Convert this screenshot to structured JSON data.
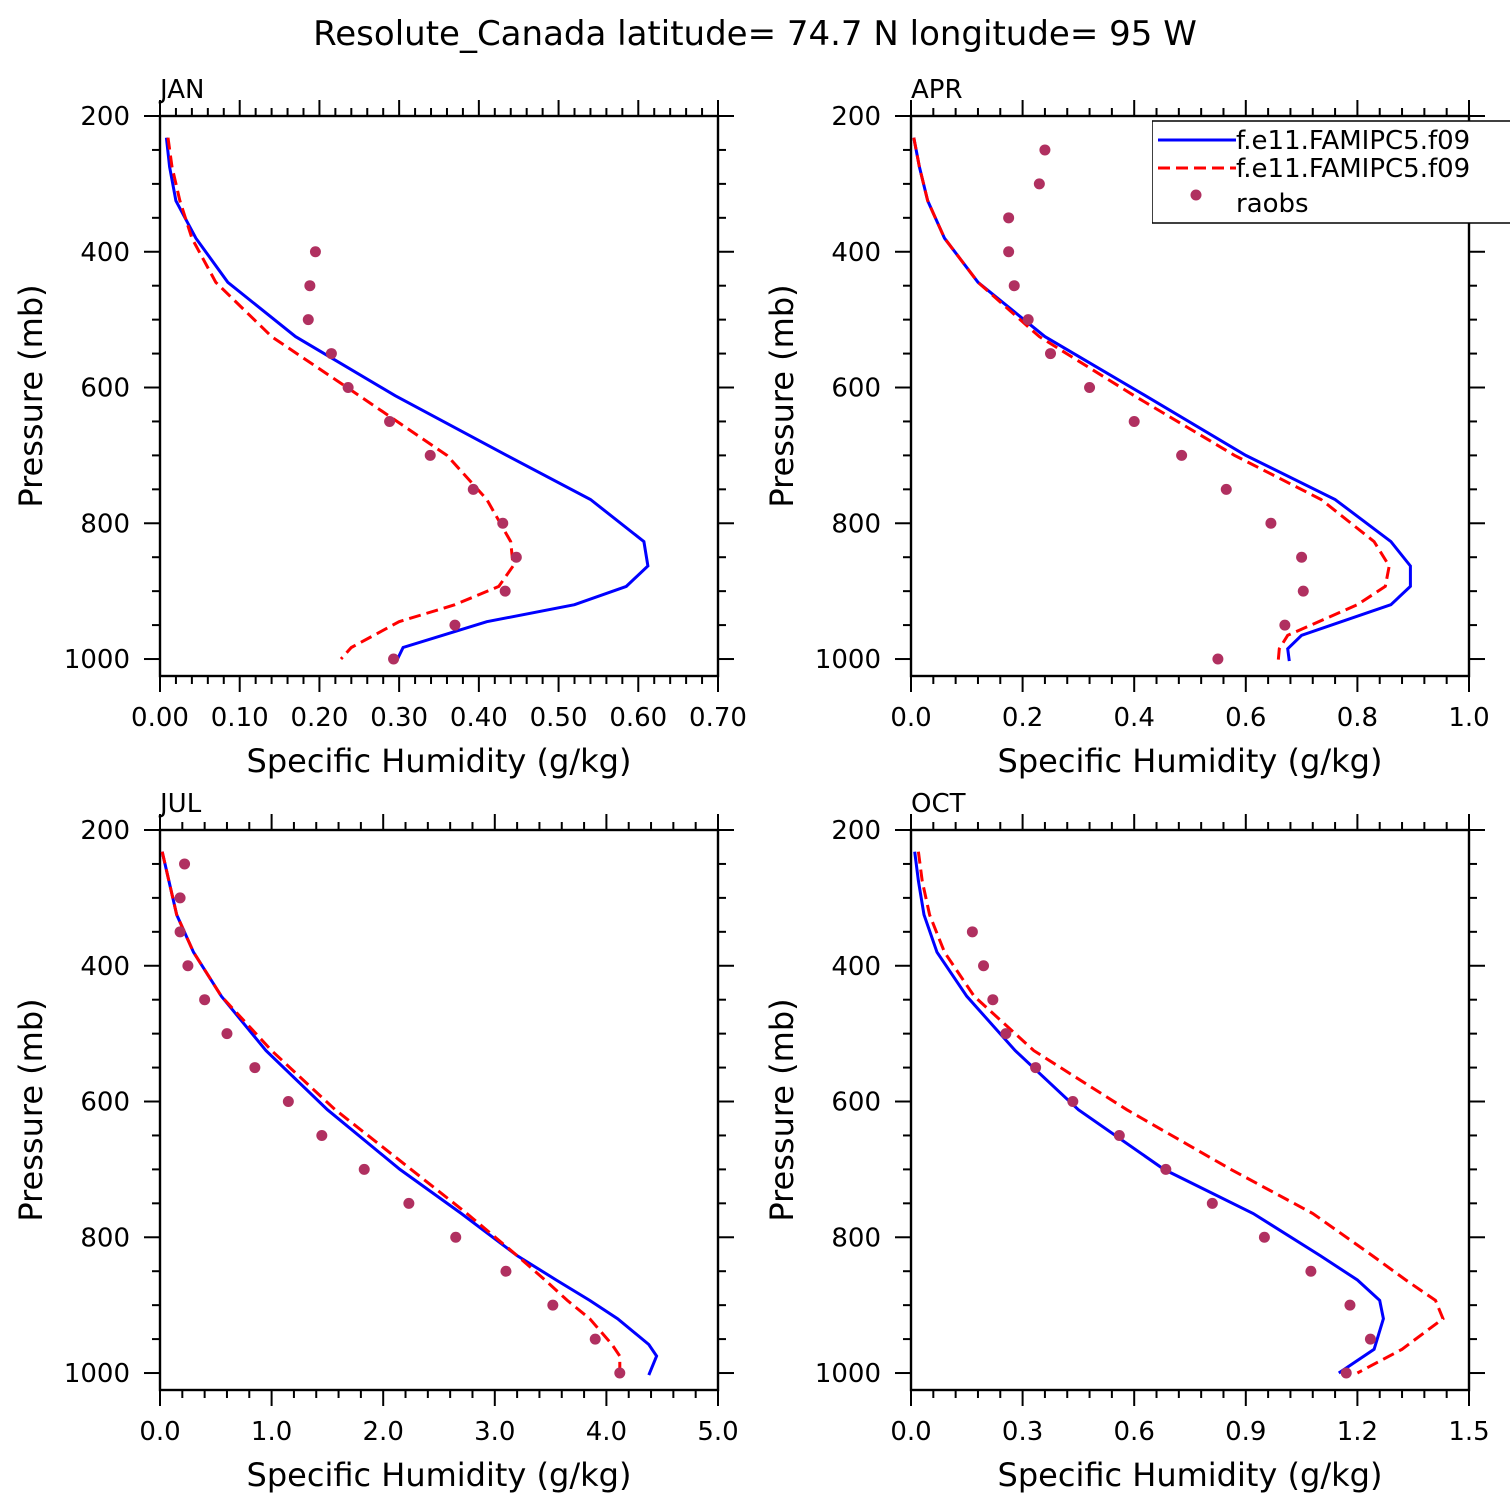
{
  "figure_title": "Resolute_Canada  latitude= 74.7 N longitude= 95 W",
  "legend": [
    {
      "label": "f.e11.FAMIPC5.f09",
      "style": "solid",
      "color": "#0000ff"
    },
    {
      "label": "f.e11.FAMIPC5.f09",
      "style": "dashed",
      "color": "#ff0000"
    },
    {
      "label": "raobs",
      "style": "dots",
      "color": "#b03060"
    }
  ],
  "chart_data": [
    {
      "type": "line",
      "panel": "JAN",
      "title": "JAN",
      "xlabel": "Specific Humidity (g/kg)",
      "ylabel": "Pressure (mb)",
      "xlim": [
        0,
        0.7
      ],
      "ylim": [
        200,
        1025
      ],
      "y_inverted": true,
      "x_tick_labels": [
        "0.00",
        "0.10",
        "0.20",
        "0.30",
        "0.40",
        "0.50",
        "0.60",
        "0.70"
      ],
      "y_tick_labels": [
        "200",
        "400",
        "600",
        "800",
        "1000"
      ],
      "series": [
        {
          "name": "f.e11.FAMIPC5.f09",
          "style": "solid",
          "color": "#0000ff",
          "x": [
            0.008,
            0.012,
            0.02,
            0.045,
            0.085,
            0.17,
            0.295,
            0.435,
            0.54,
            0.607,
            0.612,
            0.585,
            0.52,
            0.41,
            0.305,
            0.298
          ],
          "y": [
            232,
            275,
            325,
            380,
            445,
            525,
            612,
            700,
            765,
            827,
            863,
            893,
            920,
            945,
            983,
            1000
          ]
        },
        {
          "name": "f.e11.FAMIPC5.f09",
          "style": "dashed",
          "color": "#ff0000",
          "x": [
            0.01,
            0.015,
            0.025,
            0.04,
            0.07,
            0.14,
            0.25,
            0.36,
            0.41,
            0.44,
            0.443,
            0.425,
            0.37,
            0.3,
            0.24,
            0.227
          ],
          "y": [
            232,
            275,
            325,
            380,
            445,
            525,
            612,
            700,
            765,
            827,
            863,
            893,
            920,
            945,
            983,
            1000
          ]
        },
        {
          "name": "raobs",
          "style": "dots",
          "color": "#b03060",
          "x": [
            0.195,
            0.188,
            0.186,
            0.215,
            0.236,
            0.288,
            0.339,
            0.393,
            0.43,
            0.447,
            0.433,
            0.37,
            0.293
          ],
          "y": [
            400,
            450,
            500,
            550,
            600,
            650,
            700,
            750,
            800,
            850,
            900,
            950,
            1000
          ]
        }
      ]
    },
    {
      "type": "line",
      "panel": "APR",
      "title": "APR",
      "xlabel": "Specific Humidity (g/kg)",
      "ylabel": "Pressure (mb)",
      "xlim": [
        0,
        1.0
      ],
      "ylim": [
        200,
        1025
      ],
      "y_inverted": true,
      "x_tick_labels": [
        "0.0",
        "0.2",
        "0.4",
        "0.6",
        "0.8",
        "1.0"
      ],
      "y_tick_labels": [
        "200",
        "400",
        "600",
        "800",
        "1000"
      ],
      "series": [
        {
          "name": "f.e11.FAMIPC5.f09",
          "style": "solid",
          "color": "#0000ff",
          "x": [
            0.005,
            0.015,
            0.03,
            0.06,
            0.12,
            0.24,
            0.42,
            0.6,
            0.76,
            0.86,
            0.895,
            0.895,
            0.86,
            0.7,
            0.675,
            0.678
          ],
          "y": [
            232,
            275,
            325,
            380,
            445,
            525,
            612,
            700,
            765,
            827,
            863,
            893,
            920,
            965,
            985,
            1003
          ]
        },
        {
          "name": "f.e11.FAMIPC5.f09",
          "style": "dashed",
          "color": "#ff0000",
          "x": [
            0.005,
            0.015,
            0.03,
            0.06,
            0.12,
            0.23,
            0.4,
            0.58,
            0.735,
            0.83,
            0.857,
            0.85,
            0.8,
            0.675,
            0.66,
            0.658
          ],
          "y": [
            232,
            275,
            325,
            380,
            445,
            525,
            612,
            700,
            765,
            827,
            863,
            893,
            920,
            965,
            985,
            1003
          ]
        },
        {
          "name": "raobs",
          "style": "dots",
          "color": "#b03060",
          "x": [
            0.24,
            0.23,
            0.175,
            0.175,
            0.185,
            0.21,
            0.25,
            0.32,
            0.4,
            0.485,
            0.565,
            0.645,
            0.7,
            0.703,
            0.67,
            0.55
          ],
          "y": [
            250,
            300,
            350,
            400,
            450,
            500,
            550,
            600,
            650,
            700,
            750,
            800,
            850,
            900,
            950,
            1000
          ]
        }
      ]
    },
    {
      "type": "line",
      "panel": "JUL",
      "title": "JUL",
      "xlabel": "Specific Humidity (g/kg)",
      "ylabel": "Pressure (mb)",
      "xlim": [
        0,
        5.0
      ],
      "ylim": [
        200,
        1025
      ],
      "y_inverted": true,
      "x_tick_labels": [
        "0.0",
        "1.0",
        "2.0",
        "3.0",
        "4.0",
        "5.0"
      ],
      "y_tick_labels": [
        "200",
        "400",
        "600",
        "800",
        "1000"
      ],
      "series": [
        {
          "name": "f.e11.FAMIPC5.f09",
          "style": "solid",
          "color": "#0000ff",
          "x": [
            0.02,
            0.08,
            0.15,
            0.3,
            0.55,
            0.95,
            1.5,
            2.15,
            2.7,
            3.2,
            3.55,
            3.85,
            4.1,
            4.38,
            4.45,
            4.38
          ],
          "y": [
            232,
            275,
            325,
            380,
            445,
            525,
            612,
            700,
            765,
            827,
            863,
            893,
            920,
            958,
            975,
            1003
          ]
        },
        {
          "name": "f.e11.FAMIPC5.f09",
          "style": "dashed",
          "color": "#ff0000",
          "x": [
            0.02,
            0.08,
            0.15,
            0.3,
            0.55,
            1.0,
            1.57,
            2.25,
            2.75,
            3.2,
            3.45,
            3.65,
            3.85,
            4.05,
            4.12,
            4.12
          ],
          "y": [
            232,
            275,
            325,
            380,
            445,
            525,
            612,
            700,
            765,
            827,
            863,
            893,
            920,
            958,
            975,
            1003
          ]
        },
        {
          "name": "raobs",
          "style": "dots",
          "color": "#b03060",
          "x": [
            0.22,
            0.18,
            0.18,
            0.25,
            0.4,
            0.6,
            0.85,
            1.15,
            1.45,
            1.83,
            2.23,
            2.65,
            3.1,
            3.52,
            3.9,
            4.12
          ],
          "y": [
            250,
            300,
            350,
            400,
            450,
            500,
            550,
            600,
            650,
            700,
            750,
            800,
            850,
            900,
            950,
            1000
          ]
        }
      ]
    },
    {
      "type": "line",
      "panel": "OCT",
      "title": "OCT",
      "xlabel": "Specific Humidity (g/kg)",
      "ylabel": "Pressure (mb)",
      "xlim": [
        0,
        1.5
      ],
      "ylim": [
        200,
        1025
      ],
      "y_inverted": true,
      "x_tick_labels": [
        "0.0",
        "0.3",
        "0.6",
        "0.9",
        "1.2",
        "1.5"
      ],
      "y_tick_labels": [
        "200",
        "400",
        "600",
        "800",
        "1000"
      ],
      "series": [
        {
          "name": "f.e11.FAMIPC5.f09",
          "style": "solid",
          "color": "#0000ff",
          "x": [
            0.01,
            0.02,
            0.035,
            0.07,
            0.15,
            0.28,
            0.45,
            0.68,
            0.92,
            1.1,
            1.2,
            1.26,
            1.27,
            1.245,
            1.15
          ],
          "y": [
            232,
            275,
            325,
            380,
            445,
            525,
            612,
            700,
            765,
            827,
            863,
            893,
            920,
            965,
            1000
          ]
        },
        {
          "name": "f.e11.FAMIPC5.f09",
          "style": "dashed",
          "color": "#ff0000",
          "x": [
            0.02,
            0.03,
            0.05,
            0.09,
            0.17,
            0.33,
            0.58,
            0.86,
            1.08,
            1.24,
            1.33,
            1.41,
            1.43,
            1.32,
            1.2
          ],
          "y": [
            232,
            275,
            325,
            380,
            445,
            525,
            612,
            700,
            765,
            827,
            863,
            893,
            920,
            965,
            1000
          ]
        },
        {
          "name": "raobs",
          "style": "dots",
          "color": "#b03060",
          "x": [
            0.165,
            0.195,
            0.22,
            0.255,
            0.335,
            0.435,
            0.56,
            0.685,
            0.81,
            0.95,
            1.075,
            1.18,
            1.235,
            1.17
          ],
          "y": [
            350,
            400,
            450,
            500,
            550,
            600,
            650,
            700,
            750,
            800,
            850,
            900,
            950,
            1000
          ]
        }
      ]
    }
  ]
}
